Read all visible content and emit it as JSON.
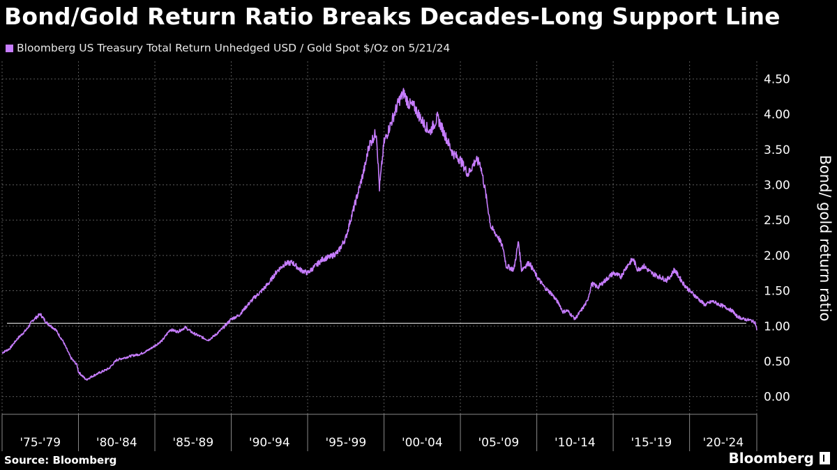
{
  "header": {
    "title": "Bond/Gold Return Ratio Breaks Decades-Long Support Line",
    "legend_label": "Bloomberg US Treasury Total Return Unhedged USD / Gold Spot $/Oz on 5/21/24"
  },
  "footer": {
    "source": "Source: Bloomberg",
    "brand": "Bloomberg"
  },
  "colors": {
    "background": "#000000",
    "series": "#c77dff",
    "grid": "#5a5a5a",
    "support_line": "#ffffff"
  },
  "chart_data": {
    "type": "line",
    "title": "Bond/Gold Return Ratio Breaks Decades-Long Support Line",
    "ylabel": "Bond/ gold return ratio",
    "xlabel": "",
    "x_range": [
      1975.0,
      2024.4
    ],
    "ylim": [
      -0.25,
      4.75
    ],
    "y_ticks": [
      0,
      0.5,
      1,
      1.5,
      2,
      2.5,
      3,
      3.5,
      4,
      4.5
    ],
    "y_tick_labels": [
      "0.00",
      "0.50",
      "1.00",
      "1.50",
      "2.00",
      "2.50",
      "3.00",
      "3.50",
      "4.00",
      "4.50"
    ],
    "x_categories": [
      "'75-'79",
      "'80-'84",
      "'85-'89",
      "'90-'94",
      "'95-'99",
      "'00-'04",
      "'05-'09",
      "'10-'14",
      "'15-'19",
      "'20-'24"
    ],
    "grid": true,
    "support_line": 1.04,
    "series": [
      {
        "name": "Bloomberg US Treasury Total Return Unhedged USD / Gold Spot $/Oz",
        "x": [
          1975.0,
          1975.5,
          1976.0,
          1976.6,
          1977.0,
          1977.5,
          1977.9,
          1978.5,
          1979.0,
          1979.5,
          1979.9,
          1980.0,
          1980.5,
          1981.0,
          1981.5,
          1982.0,
          1982.5,
          1983.0,
          1983.5,
          1984.0,
          1984.5,
          1985.0,
          1985.5,
          1986.0,
          1986.5,
          1987.0,
          1987.5,
          1988.0,
          1988.5,
          1989.0,
          1989.5,
          1990.0,
          1990.5,
          1991.0,
          1991.5,
          1992.0,
          1992.5,
          1993.0,
          1993.5,
          1994.0,
          1994.5,
          1995.0,
          1995.5,
          1996.0,
          1996.5,
          1997.0,
          1997.5,
          1997.8,
          1998.0,
          1998.5,
          1998.8,
          1999.0,
          1999.5,
          1999.7,
          2000.0,
          2000.5,
          2001.0,
          2001.3,
          2001.6,
          2002.0,
          2002.5,
          2003.0,
          2003.5,
          2004.0,
          2004.5,
          2005.0,
          2005.5,
          2006.0,
          2006.3,
          2006.6,
          2007.0,
          2007.5,
          2007.8,
          2008.0,
          2008.5,
          2008.8,
          2009.0,
          2009.5,
          2010.0,
          2010.5,
          2011.0,
          2011.5,
          2011.7,
          2012.0,
          2012.5,
          2013.0,
          2013.3,
          2013.6,
          2014.0,
          2014.5,
          2015.0,
          2015.5,
          2015.9,
          2016.3,
          2016.6,
          2017.0,
          2017.5,
          2018.0,
          2018.5,
          2018.8,
          2019.0,
          2019.3,
          2019.6,
          2020.0,
          2020.6,
          2021.0,
          2021.5,
          2022.0,
          2022.5,
          2022.9,
          2023.0,
          2023.5,
          2024.0,
          2024.3,
          2024.4
        ],
        "values": [
          0.62,
          0.68,
          0.82,
          0.95,
          1.08,
          1.17,
          1.05,
          0.95,
          0.78,
          0.55,
          0.45,
          0.35,
          0.24,
          0.3,
          0.35,
          0.4,
          0.52,
          0.55,
          0.58,
          0.6,
          0.65,
          0.72,
          0.8,
          0.95,
          0.92,
          0.98,
          0.9,
          0.85,
          0.8,
          0.88,
          0.98,
          1.1,
          1.15,
          1.28,
          1.4,
          1.5,
          1.62,
          1.78,
          1.88,
          1.9,
          1.8,
          1.75,
          1.85,
          1.95,
          1.98,
          2.05,
          2.25,
          2.5,
          2.65,
          3.05,
          3.3,
          3.55,
          3.75,
          2.95,
          3.6,
          3.9,
          4.2,
          4.3,
          4.15,
          4.1,
          3.9,
          3.75,
          3.95,
          3.7,
          3.45,
          3.35,
          3.15,
          3.35,
          3.3,
          2.95,
          2.4,
          2.25,
          2.1,
          1.85,
          1.8,
          2.2,
          1.8,
          1.9,
          1.7,
          1.55,
          1.45,
          1.3,
          1.2,
          1.22,
          1.1,
          1.25,
          1.35,
          1.6,
          1.55,
          1.65,
          1.75,
          1.7,
          1.85,
          1.95,
          1.8,
          1.85,
          1.75,
          1.7,
          1.65,
          1.72,
          1.8,
          1.7,
          1.6,
          1.5,
          1.38,
          1.3,
          1.35,
          1.3,
          1.25,
          1.2,
          1.15,
          1.1,
          1.08,
          1.05,
          0.94
        ]
      }
    ]
  }
}
